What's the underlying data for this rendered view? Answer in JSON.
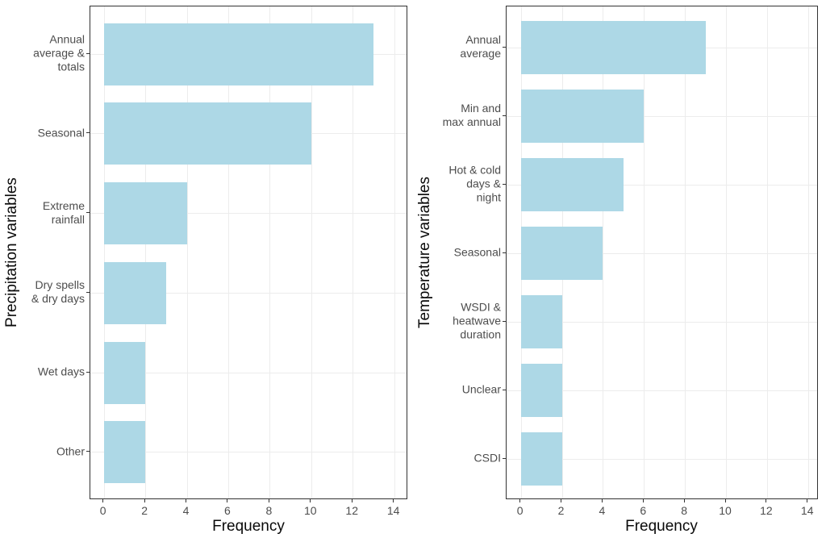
{
  "figure": {
    "background": "#ffffff",
    "bar_fill": "#ADD8E6",
    "grid_major_color": "#ececec",
    "panel_border_color": "#333333",
    "tick_label_color": "#4d4d4d",
    "axis_title_color": "#0a0a0a"
  },
  "chart_data": [
    {
      "type": "bar",
      "orientation": "horizontal",
      "title": "",
      "xlabel": "Frequency",
      "ylabel": "Precipitation variables",
      "categories": [
        "Annual\naverage &\ntotals",
        "Seasonal",
        "Extreme\nrainfall",
        "Dry spells\n& dry days",
        "Wet days",
        "Other"
      ],
      "values": [
        13,
        10,
        4,
        3,
        2,
        2
      ],
      "xlim": [
        0,
        14
      ],
      "xticks": [
        0,
        2,
        4,
        6,
        8,
        10,
        12,
        14
      ],
      "grid": "major-vertical-at-even-ticks-and-horizontal-at-category-centers",
      "legend": "none",
      "bar_color": "#ADD8E6"
    },
    {
      "type": "bar",
      "orientation": "horizontal",
      "title": "",
      "xlabel": "Frequency",
      "ylabel": "Temperature variables",
      "categories": [
        "Annual\naverage",
        "Min and\nmax annual",
        "Hot & cold\ndays &\nnight",
        "Seasonal",
        "WSDI &\nheatwave\nduration",
        "Unclear",
        "CSDI"
      ],
      "values": [
        9,
        6,
        5,
        4,
        2,
        2,
        2
      ],
      "xlim": [
        0,
        14
      ],
      "xticks": [
        0,
        2,
        4,
        6,
        8,
        10,
        12,
        14
      ],
      "grid": "major-vertical-at-even-ticks-and-horizontal-at-category-centers",
      "legend": "none",
      "bar_color": "#ADD8E6"
    }
  ]
}
